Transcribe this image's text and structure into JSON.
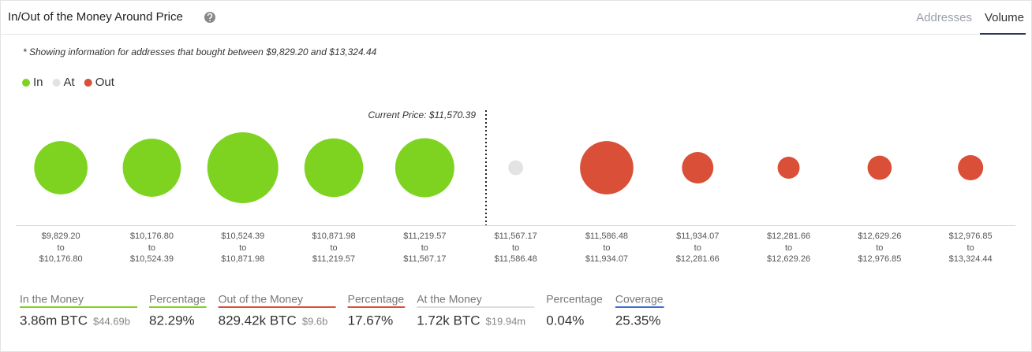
{
  "header": {
    "title": "In/Out of the Money Around Price",
    "tabs": [
      "Addresses",
      "Volume"
    ],
    "active_tab": 1
  },
  "chart_data": {
    "type": "bubble",
    "note": "* Showing information for addresses that bought between $9,829.20 and $13,324.44",
    "annotation": "Current Price: $11,570.39",
    "range_word": "to",
    "categories": [
      "$9,829.20",
      "$10,176.80",
      "$10,524.39",
      "$10,871.98",
      "$11,219.57",
      "$11,567.17",
      "$11,586.48",
      "$11,934.07",
      "$12,281.66",
      "$12,629.26",
      "$12,976.85"
    ],
    "categories_to": [
      "$10,176.80",
      "$10,524.39",
      "$10,871.98",
      "$11,219.57",
      "$11,567.17",
      "$11,586.48",
      "$11,934.07",
      "$12,281.66",
      "$12,629.26",
      "$12,976.85",
      "$13,324.44"
    ],
    "series": [
      {
        "name": "In",
        "color": "#7ed321",
        "values": [
          560000,
          700000,
          1150000,
          720000,
          730000,
          null,
          null,
          null,
          null,
          null,
          null
        ]
      },
      {
        "name": "At",
        "color": "#e3e3e3",
        "values": [
          null,
          null,
          null,
          null,
          null,
          1720,
          null,
          null,
          null,
          null,
          null
        ]
      },
      {
        "name": "Out",
        "color": "#d94f38",
        "values": [
          null,
          null,
          null,
          null,
          null,
          null,
          560000,
          120000,
          30000,
          45000,
          54000
        ]
      }
    ]
  },
  "summary": [
    {
      "label": "In the Money",
      "value": "3.86m BTC",
      "sub": "$44.69b",
      "color": "#7ed321"
    },
    {
      "label": "Percentage",
      "value": "82.29%",
      "color": "#7ed321"
    },
    {
      "label": "Out of the Money",
      "value": "829.42k BTC",
      "sub": "$9.6b",
      "color": "#d94f38"
    },
    {
      "label": "Percentage",
      "value": "17.67%",
      "color": "#d94f38"
    },
    {
      "label": "At the Money",
      "value": "1.72k BTC",
      "sub": "$19.94m",
      "color": "#dddddd"
    },
    {
      "label": "Percentage",
      "value": "0.04%",
      "color": "#ffffff"
    },
    {
      "label": "Coverage",
      "value": "25.35%",
      "color": "#3b6fd1"
    }
  ]
}
